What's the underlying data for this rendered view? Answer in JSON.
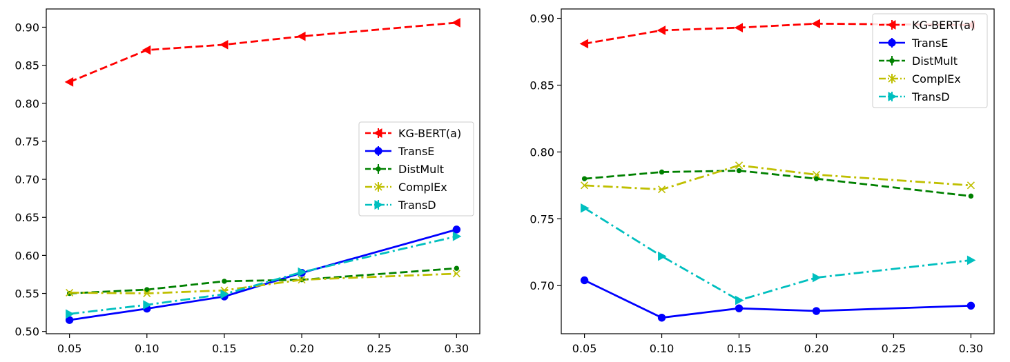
{
  "chart_data": [
    {
      "type": "line",
      "x": [
        0.05,
        0.1,
        0.15,
        0.2,
        0.3
      ],
      "xlim": [
        0.035,
        0.315
      ],
      "ylim": [
        0.497,
        0.924
      ],
      "x_ticks": [
        "0.05",
        "0.10",
        "0.15",
        "0.20",
        "0.25",
        "0.30"
      ],
      "x_tick_values": [
        0.05,
        0.1,
        0.15,
        0.2,
        0.25,
        0.3
      ],
      "y_ticks": [
        "0.50",
        "0.55",
        "0.60",
        "0.65",
        "0.70",
        "0.75",
        "0.80",
        "0.85",
        "0.90"
      ],
      "y_tick_values": [
        0.5,
        0.55,
        0.6,
        0.65,
        0.7,
        0.75,
        0.8,
        0.85,
        0.9
      ],
      "grid": false,
      "legend_position": "center-right",
      "series": [
        {
          "name": "KG-BERT(a)",
          "values": [
            0.828,
            0.87,
            0.877,
            0.888,
            0.906
          ],
          "color": "#ff0000",
          "dash": "dashed",
          "marker": "triangle-left"
        },
        {
          "name": "TransE",
          "values": [
            0.515,
            0.53,
            0.546,
            0.577,
            0.634
          ],
          "color": "#0000ff",
          "dash": "solid",
          "marker": "circle"
        },
        {
          "name": "DistMult",
          "values": [
            0.55,
            0.555,
            0.566,
            0.568,
            0.583
          ],
          "color": "#008000",
          "dash": "dashed",
          "marker": "point"
        },
        {
          "name": "ComplEx",
          "values": [
            0.551,
            0.55,
            0.554,
            0.568,
            0.576
          ],
          "color": "#bfbf00",
          "dash": "dashdot",
          "marker": "x"
        },
        {
          "name": "TransD",
          "values": [
            0.523,
            0.535,
            0.549,
            0.578,
            0.625
          ],
          "color": "#00bfbf",
          "dash": "dashdot",
          "marker": "triangle-right"
        }
      ]
    },
    {
      "type": "line",
      "x": [
        0.05,
        0.1,
        0.15,
        0.2,
        0.3
      ],
      "xlim": [
        0.035,
        0.315
      ],
      "ylim": [
        0.664,
        0.907
      ],
      "x_ticks": [
        "0.05",
        "0.10",
        "0.15",
        "0.20",
        "0.25",
        "0.30"
      ],
      "x_tick_values": [
        0.05,
        0.1,
        0.15,
        0.2,
        0.25,
        0.3
      ],
      "y_ticks": [
        "0.70",
        "0.75",
        "0.80",
        "0.85",
        "0.90"
      ],
      "y_tick_values": [
        0.7,
        0.75,
        0.8,
        0.85,
        0.9
      ],
      "grid": false,
      "legend_position": "top-right",
      "series": [
        {
          "name": "KG-BERT(a)",
          "values": [
            0.881,
            0.891,
            0.893,
            0.896,
            0.895
          ],
          "color": "#ff0000",
          "dash": "dashed",
          "marker": "triangle-left"
        },
        {
          "name": "TransE",
          "values": [
            0.704,
            0.676,
            0.683,
            0.681,
            0.685
          ],
          "color": "#0000ff",
          "dash": "solid",
          "marker": "circle"
        },
        {
          "name": "DistMult",
          "values": [
            0.78,
            0.785,
            0.786,
            0.78,
            0.767
          ],
          "color": "#008000",
          "dash": "dashed",
          "marker": "point"
        },
        {
          "name": "ComplEx",
          "values": [
            0.775,
            0.772,
            0.79,
            0.783,
            0.775
          ],
          "color": "#bfbf00",
          "dash": "dashdot",
          "marker": "x"
        },
        {
          "name": "TransD",
          "values": [
            0.758,
            0.722,
            0.689,
            0.706,
            0.719
          ],
          "color": "#00bfbf",
          "dash": "dashdot",
          "marker": "triangle-right"
        }
      ]
    }
  ]
}
